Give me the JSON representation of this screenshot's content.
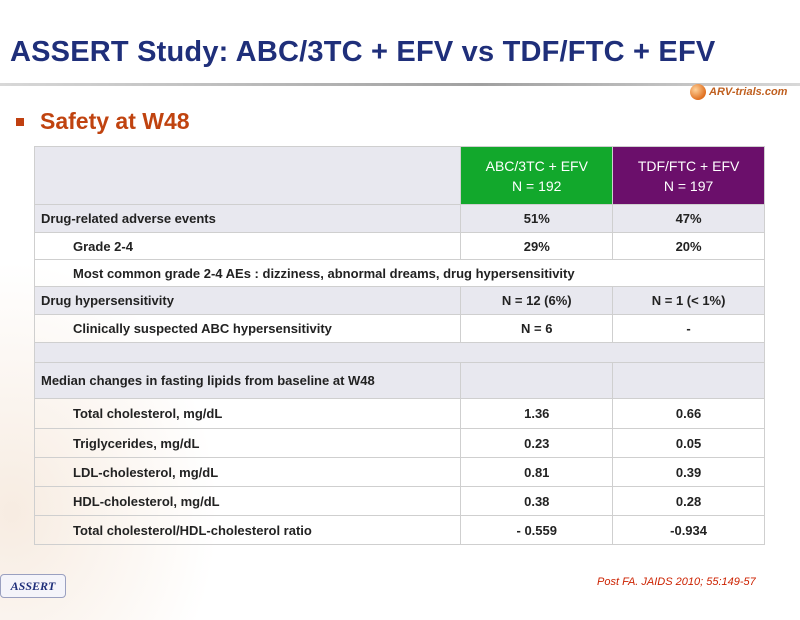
{
  "slide": {
    "title": "ASSERT Study: ABC/3TC + EFV vs TDF/FTC + EFV",
    "bullet": "Safety at W48",
    "logo_text": "ARV-trials.com",
    "citation": "Post FA. JAIDS 2010; 55:149-57",
    "study_tag": "ASSERT"
  },
  "table": {
    "columns": [
      {
        "line1": "ABC/3TC + EFV",
        "line2": "N = 192",
        "color": "#12a82c"
      },
      {
        "line1": "TDF/FTC + EFV",
        "line2": "N = 197",
        "color": "#6b0f6b"
      }
    ],
    "rows": [
      {
        "label": "Drug-related adverse events",
        "a": "51%",
        "b": "47%"
      },
      {
        "label": "Grade 2-4",
        "a": "29%",
        "b": "20%"
      },
      {
        "label": "Most common grade 2-4 AEs : dizziness, abnormal dreams, drug hypersensitivity"
      },
      {
        "label": "Drug hypersensitivity",
        "a": "N = 12 (6%)",
        "b": "N = 1 (< 1%)"
      },
      {
        "label": "Clinically suspected ABC hypersensitivity",
        "a": "N = 6",
        "b": "-"
      },
      {
        "label": "Median changes in fasting lipids from baseline at W48"
      },
      {
        "label": "Total cholesterol, mg/dL",
        "a": "1.36",
        "b": "0.66"
      },
      {
        "label": "Triglycerides, mg/dL",
        "a": "0.23",
        "b": "0.05"
      },
      {
        "label": "LDL-cholesterol, mg/dL",
        "a": "0.81",
        "b": "0.39"
      },
      {
        "label": "HDL-cholesterol, mg/dL",
        "a": "0.38",
        "b": "0.28"
      },
      {
        "label": "Total cholesterol/HDL-cholesterol ratio",
        "a": "- 0.559",
        "b": "-0.934"
      }
    ]
  }
}
